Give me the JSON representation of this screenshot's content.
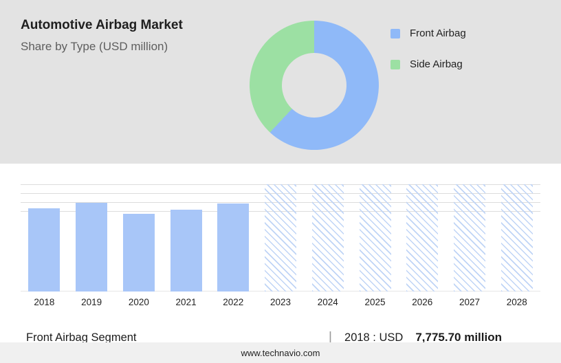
{
  "header": {
    "title": "Automotive Airbag Market",
    "subtitle": "Share by Type (USD million)"
  },
  "legend": [
    {
      "label": "Front Airbag",
      "color": "#8fb9f8"
    },
    {
      "label": "Side Airbag",
      "color": "#9ce0a3"
    }
  ],
  "chart_data": [
    {
      "type": "pie",
      "donut": true,
      "title": "Share by Type (USD million)",
      "labels": [
        "Front Airbag",
        "Side Airbag"
      ],
      "values": [
        62,
        38
      ],
      "colors": [
        "#8fb9f8",
        "#9ce0a3"
      ],
      "legend_position": "right"
    },
    {
      "type": "bar",
      "title": "Front Airbag Segment (USD million)",
      "categories": [
        "2018",
        "2019",
        "2020",
        "2021",
        "2022",
        "2023",
        "2024",
        "2025",
        "2026",
        "2027",
        "2028"
      ],
      "values": [
        7775.7,
        8290,
        7250,
        7650,
        8230,
        null,
        null,
        null,
        null,
        null,
        null
      ],
      "forecast_categories": [
        "2023",
        "2024",
        "2025",
        "2026",
        "2027",
        "2028"
      ],
      "bar_color": "#a8c6f8",
      "xlabel": "",
      "ylabel": "",
      "ylim": [
        0,
        10000
      ],
      "grid": true
    }
  ],
  "caption": {
    "segment_label": "Front Airbag Segment",
    "separator": "|",
    "value_prefix": "2018 : USD",
    "value_number": "7,775.70 million"
  },
  "footer": {
    "website": "www.technavio.com"
  }
}
